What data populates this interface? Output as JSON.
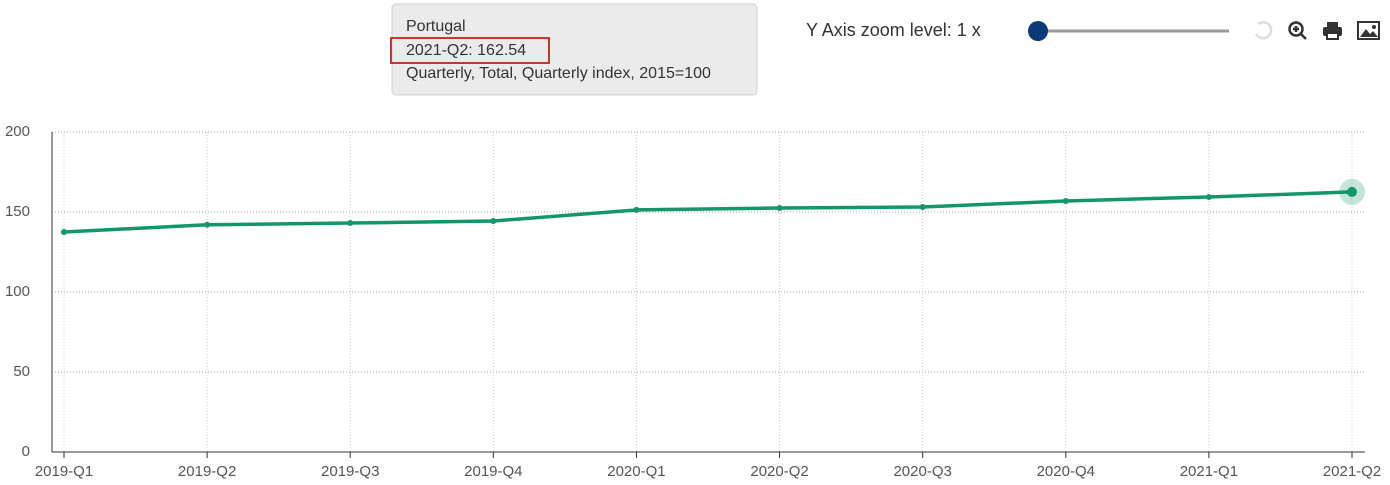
{
  "chart_data": {
    "type": "line",
    "categories": [
      "2019-Q1",
      "2019-Q2",
      "2019-Q3",
      "2019-Q4",
      "2020-Q1",
      "2020-Q2",
      "2020-Q3",
      "2020-Q4",
      "2021-Q1",
      "2021-Q2"
    ],
    "series": [
      {
        "name": "Portugal",
        "color": "#13976a",
        "values": [
          137.5,
          142,
          143.1,
          144.4,
          151.3,
          152.5,
          153.1,
          156.9,
          159.4,
          162.54
        ]
      }
    ],
    "ylim": [
      0,
      200
    ],
    "yticks": [
      0,
      50,
      100,
      150,
      200
    ],
    "grid": true
  },
  "tooltip": {
    "value_line": "2021-Q2: 162.54",
    "subtitle": "Quarterly, Total, Quarterly index, 2015=100"
  },
  "toolbar": {
    "zoom_label": "Y Axis zoom level: 1 x"
  }
}
